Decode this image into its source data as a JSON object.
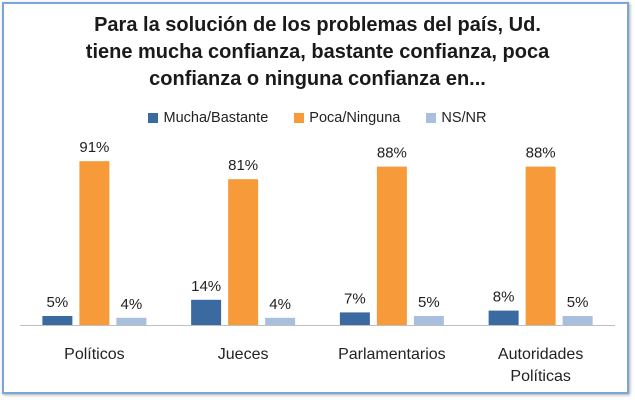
{
  "chart_data": {
    "type": "bar",
    "title_lines": [
      "Para la solución de los problemas del país, Ud.",
      "tiene mucha confianza, bastante confianza, poca",
      "confianza o ninguna confianza en..."
    ],
    "categories": [
      "Políticos",
      "Jueces",
      "Parlamentarios",
      "Autoridades\nPolíticas"
    ],
    "series": [
      {
        "name": "Mucha/Bastante",
        "color": "#3b6aa0",
        "values": [
          5,
          14,
          7,
          8
        ],
        "labels": [
          "5%",
          "14%",
          "7%",
          "8%"
        ]
      },
      {
        "name": "Poca/Ninguna",
        "color": "#f79a3a",
        "values": [
          91,
          81,
          88,
          88
        ],
        "labels": [
          "91%",
          "81%",
          "88%",
          "88%"
        ]
      },
      {
        "name": "NS/NR",
        "color": "#a9bfe0",
        "values": [
          4,
          4,
          5,
          5
        ],
        "labels": [
          "4%",
          "4%",
          "5%",
          "5%"
        ]
      }
    ],
    "ylim": [
      0,
      100
    ],
    "legend_position": "top",
    "grid": false
  }
}
